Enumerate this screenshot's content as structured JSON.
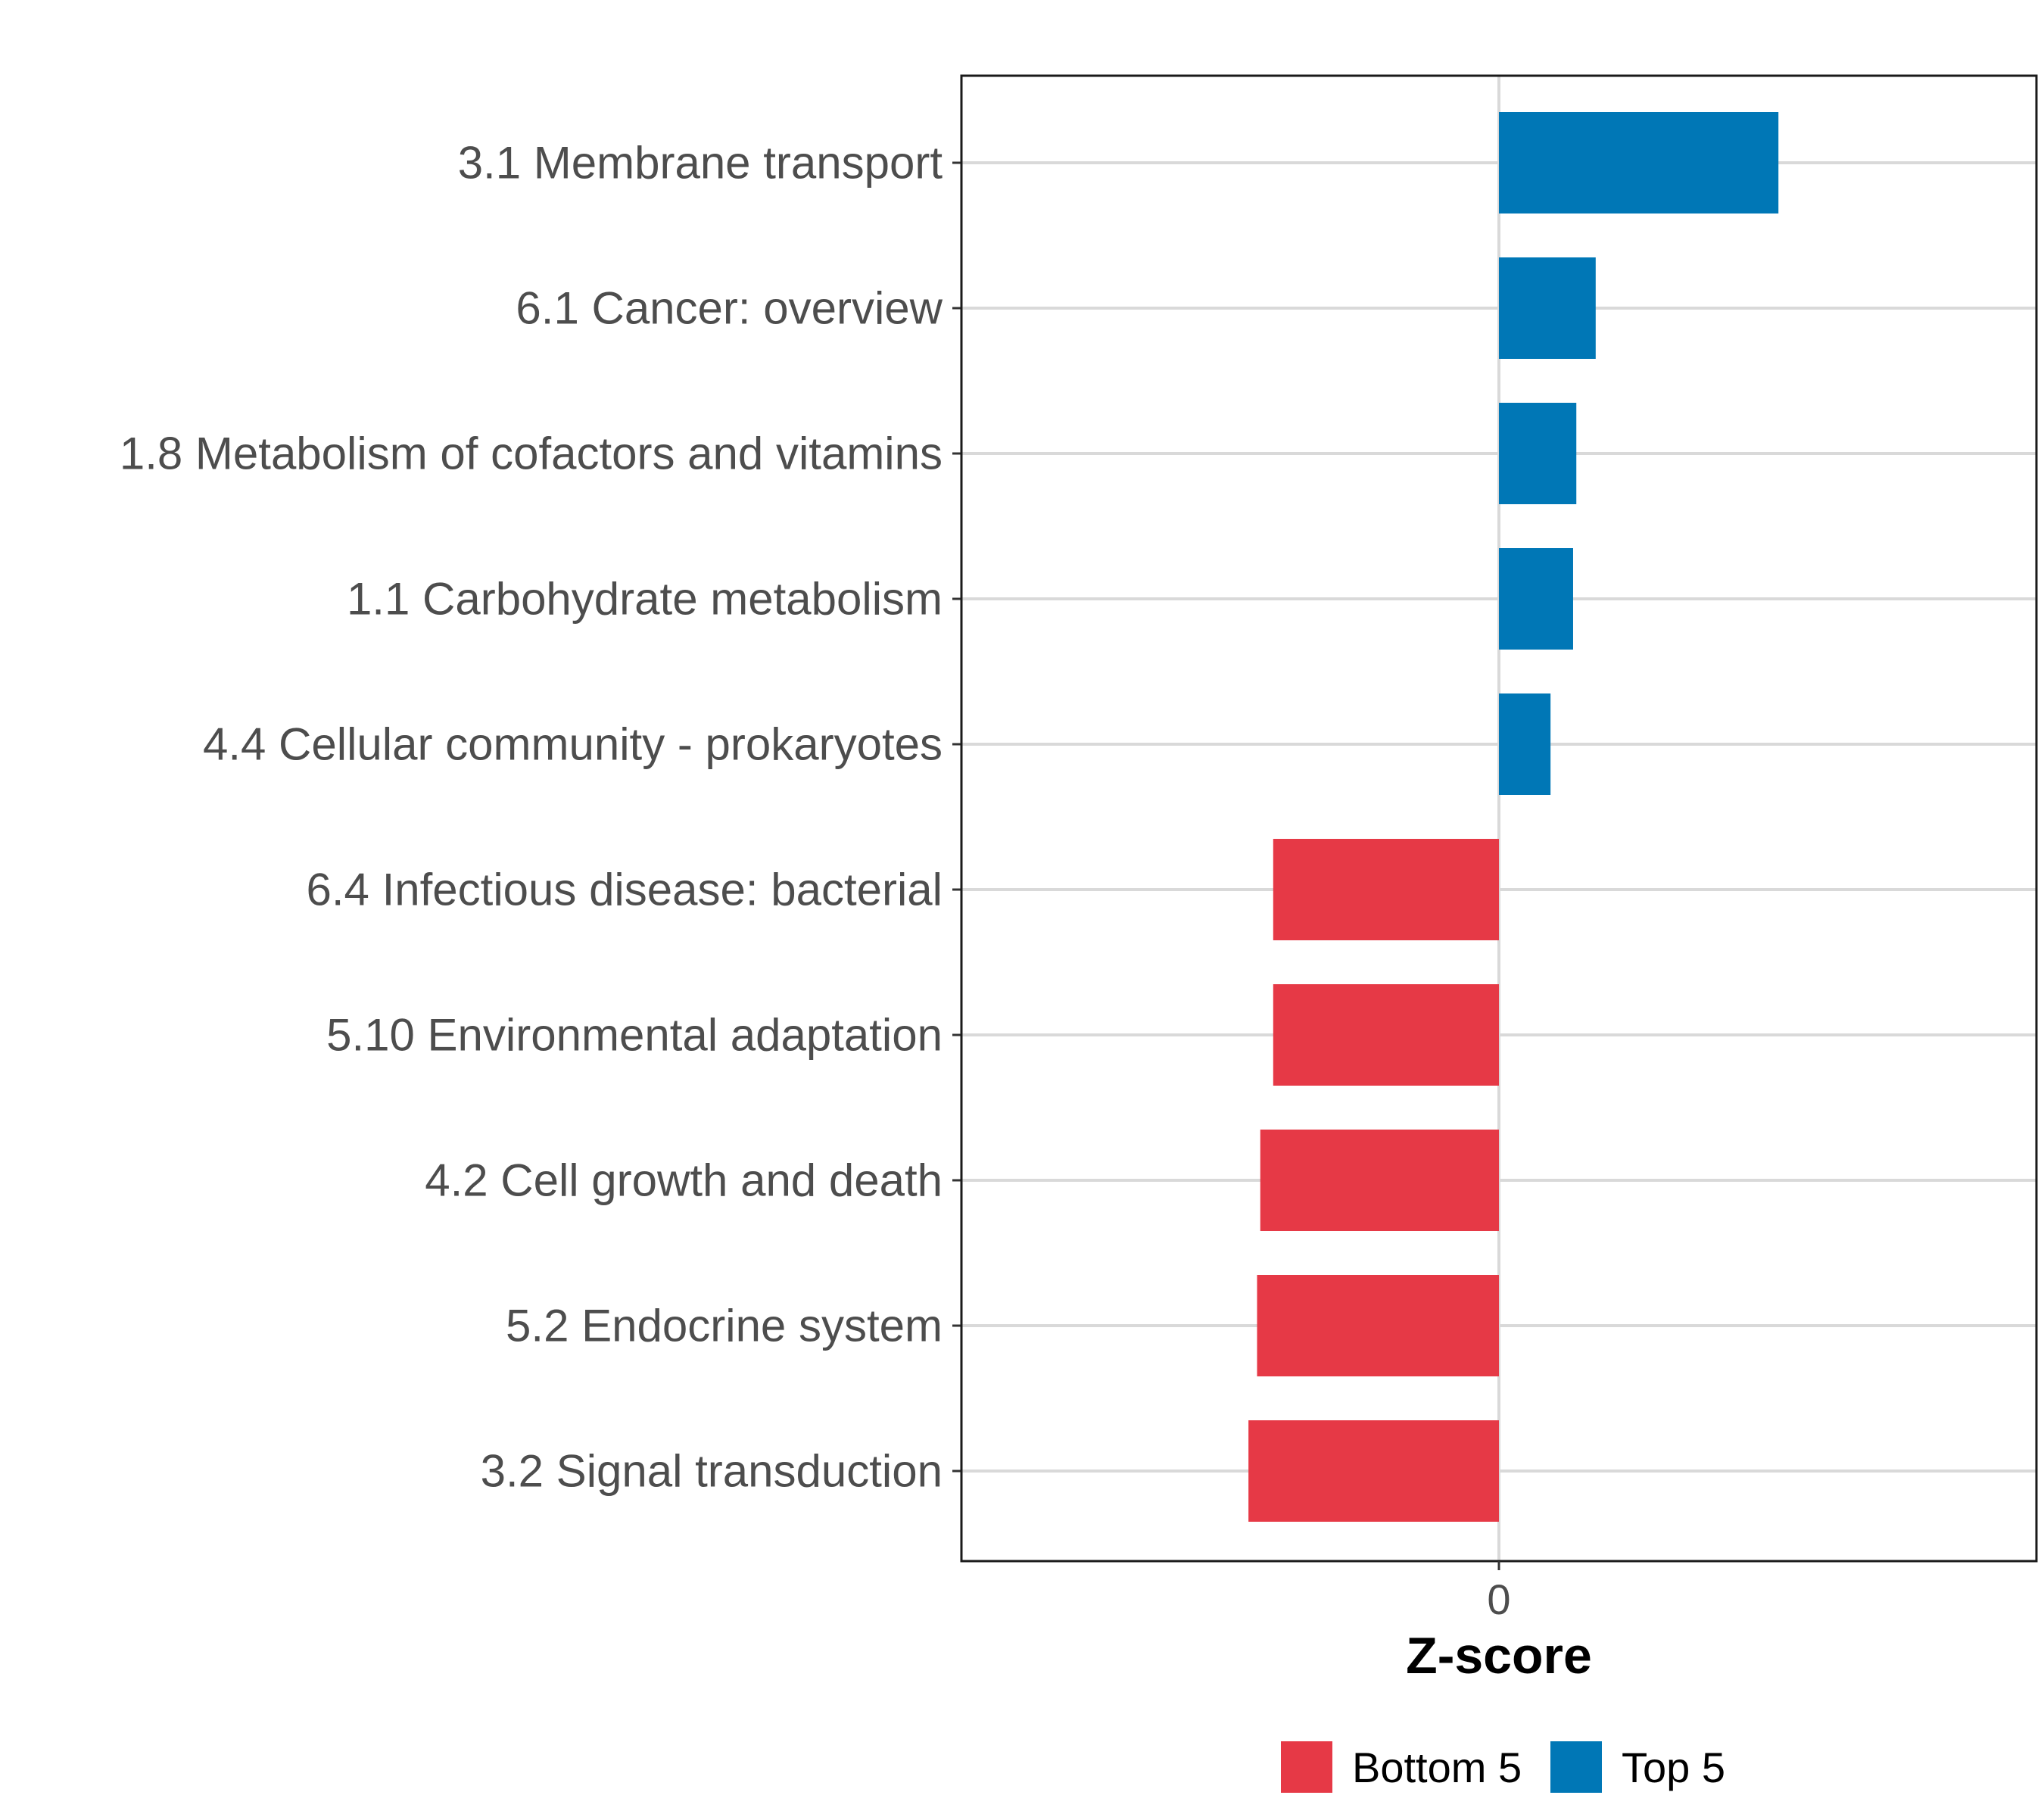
{
  "chart_data": {
    "type": "bar",
    "orientation": "horizontal",
    "categories": [
      "3.1 Membrane transport",
      "6.1 Cancer: overview",
      "1.8 Metabolism of cofactors and vitamins",
      "1.1 Carbohydrate metabolism",
      "4.4 Cellular community - prokaryotes",
      "6.4 Infectious disease: bacterial",
      "5.10 Environmental adaptation",
      "4.2 Cell growth and death",
      "5.2 Endocrine system",
      "3.2 Signal transduction"
    ],
    "values": [
      2.6,
      0.9,
      0.72,
      0.69,
      0.48,
      -2.1,
      -2.1,
      -2.22,
      -2.25,
      -2.33
    ],
    "groups": [
      "Top 5",
      "Top 5",
      "Top 5",
      "Top 5",
      "Top 5",
      "Bottom 5",
      "Bottom 5",
      "Bottom 5",
      "Bottom 5",
      "Bottom 5"
    ],
    "xlabel": "Z-score",
    "ylabel": "",
    "xlim": [
      -5,
      5
    ],
    "xticks": [
      0
    ],
    "xtick_labels": [
      "0"
    ],
    "grid": "horizontal",
    "legend": {
      "position": "bottom",
      "entries": [
        {
          "label": "Bottom 5",
          "color": "#e63946"
        },
        {
          "label": "Top 5",
          "color": "#0077b6"
        }
      ]
    },
    "colors": {
      "Bottom 5": "#e63946",
      "Top 5": "#0077b6"
    }
  }
}
